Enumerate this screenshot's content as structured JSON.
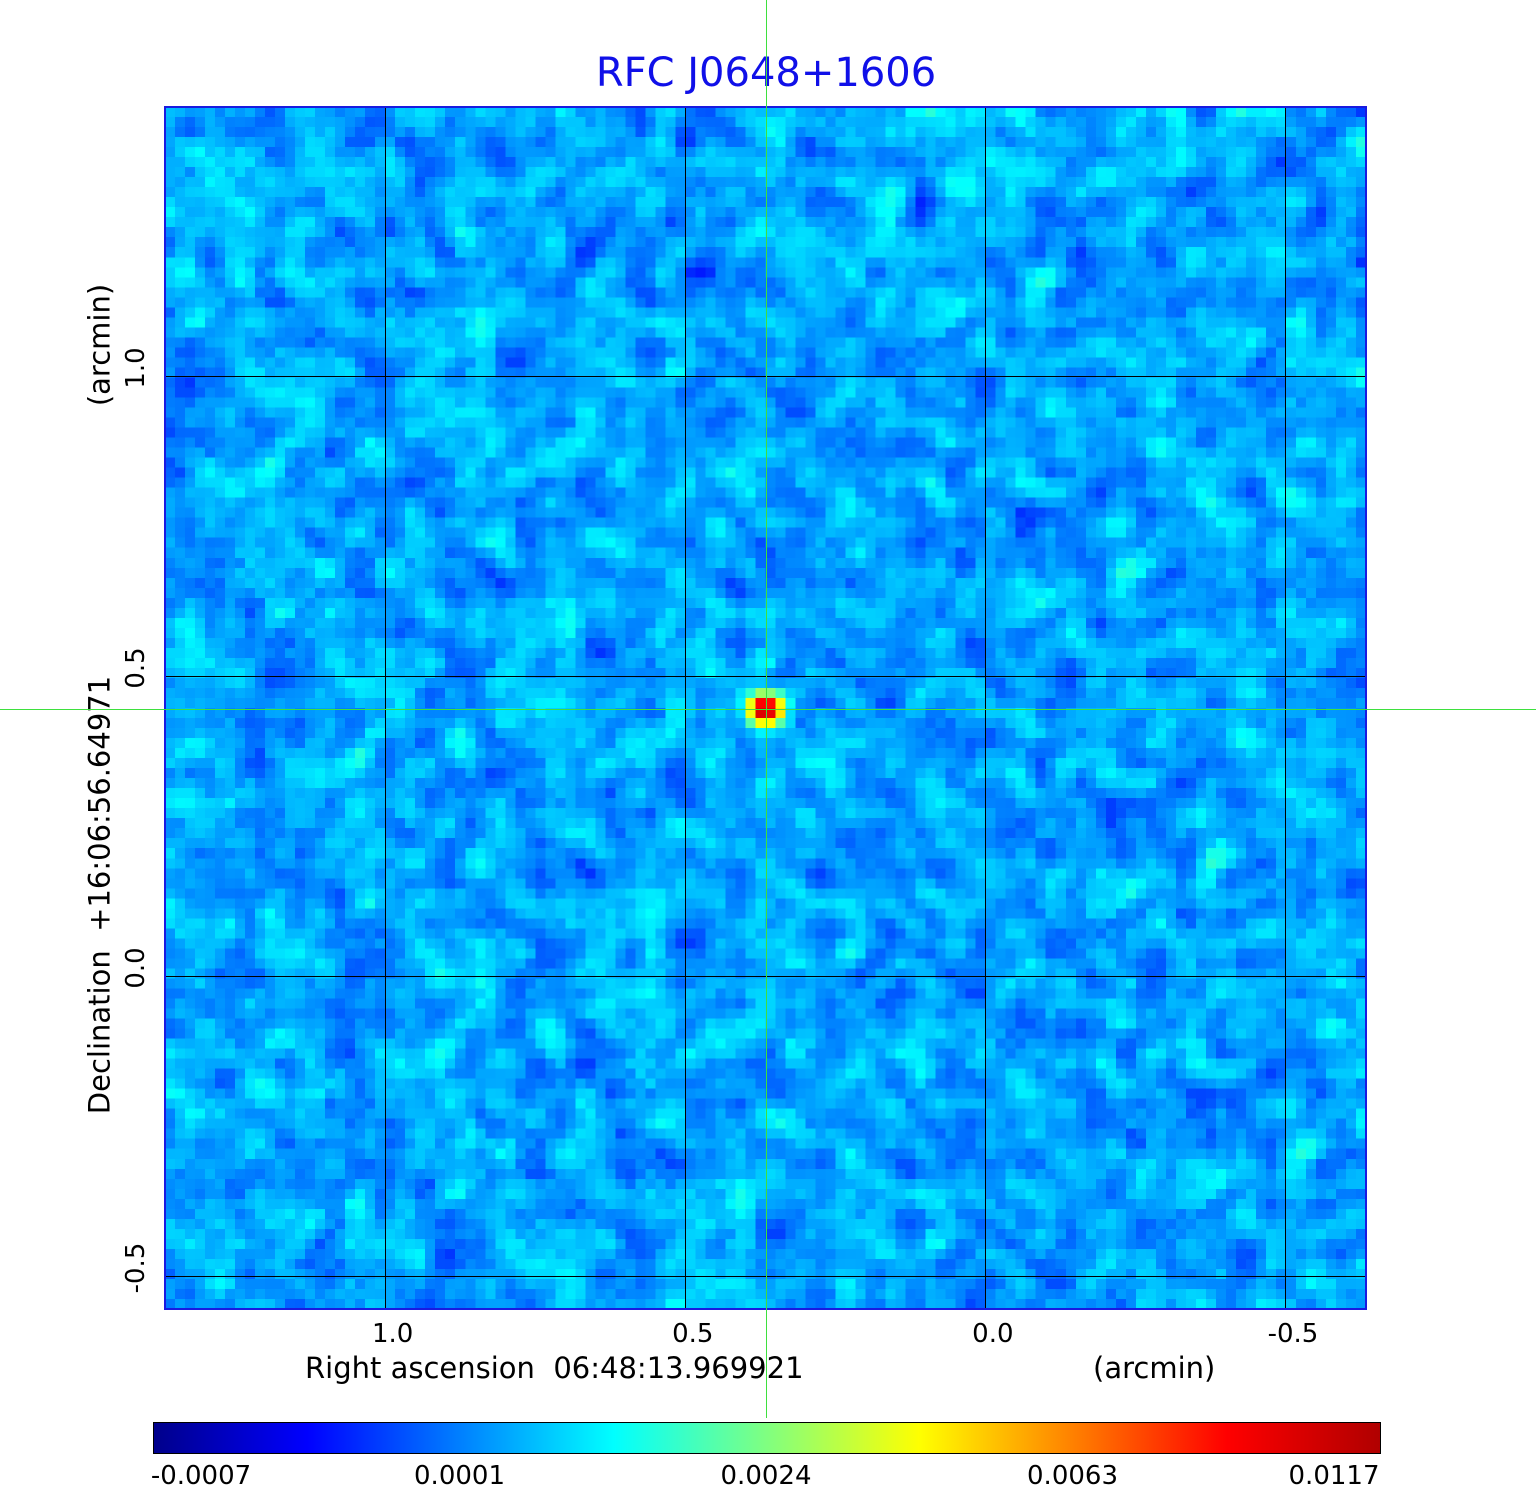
{
  "chart_data": {
    "type": "heatmap",
    "title": "RFC J0648+1606",
    "xlabel": "Right ascension  06:48:13.969921",
    "xunit": "(arcmin)",
    "ylabel": "Declination  +16:06:56.64971",
    "yunit": "(arcmin)",
    "xlim": [
      1.366,
      -0.635
    ],
    "ylim": [
      -0.555,
      1.448
    ],
    "x_ticks": [
      {
        "value": 1.0,
        "label": "1.0"
      },
      {
        "value": 0.5,
        "label": "0.5"
      },
      {
        "value": 0.0,
        "label": "0.0"
      },
      {
        "value": -0.5,
        "label": "-0.5"
      }
    ],
    "y_ticks": [
      {
        "value": 1.0,
        "label": "1.0"
      },
      {
        "value": 0.5,
        "label": "0.5"
      },
      {
        "value": 0.0,
        "label": "0.0"
      },
      {
        "value": -0.5,
        "label": "-0.5"
      }
    ],
    "grid": true,
    "source_peak": {
      "x": 0.365,
      "y": 0.445,
      "value": 0.0117
    },
    "crosshair": {
      "x": 0.365,
      "y": 0.445,
      "color": "#3ee03e"
    },
    "colorbar": {
      "position": "bottom",
      "ticks": [
        "-0.0007",
        "0.0001",
        "0.0024",
        "0.0063",
        "0.0117"
      ],
      "colormap": [
        "#00008b",
        "#0000ff",
        "#0080ff",
        "#00ffff",
        "#80ff80",
        "#ffff00",
        "#ff8000",
        "#ff0000",
        "#b00000"
      ]
    },
    "frame_color": "#1a1ae0",
    "title_color": "#1010e8"
  }
}
